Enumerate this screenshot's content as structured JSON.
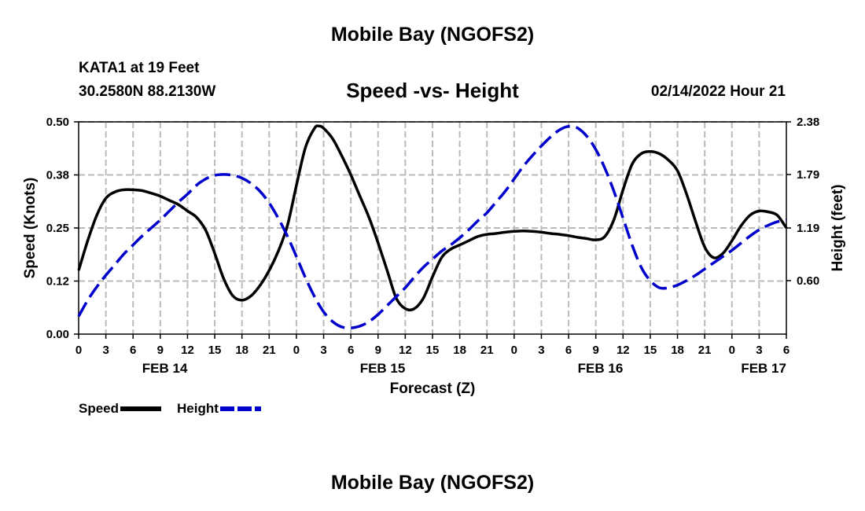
{
  "header": {
    "title": "Mobile Bay (NGOFS2)",
    "station": "KATA1 at 19 Feet",
    "coordinates": "30.2580N  88.2130W",
    "subtitle": "Speed -vs- Height",
    "date": "02/14/2022 Hour 21"
  },
  "footer": {
    "title": "Mobile Bay (NGOFS2)"
  },
  "legend": {
    "speed": "Speed",
    "height": "Height"
  },
  "chart_data": {
    "type": "line",
    "title": "Speed -vs- Height",
    "xlabel": "Forecast (Z)",
    "ylabel_left": "Speed (Knots)",
    "ylabel_right": "Height (feet)",
    "x_unit": "hours from FEB 14 00Z",
    "x_range": [
      0,
      78
    ],
    "x_ticks": [
      0,
      3,
      6,
      9,
      12,
      15,
      18,
      21,
      24,
      27,
      30,
      33,
      36,
      39,
      42,
      45,
      48,
      51,
      54,
      57,
      60,
      63,
      66,
      69,
      72,
      75,
      78
    ],
    "x_tick_labels": [
      "0",
      "3",
      "6",
      "9",
      "12",
      "15",
      "18",
      "21",
      "0",
      "3",
      "6",
      "9",
      "12",
      "15",
      "18",
      "21",
      "0",
      "3",
      "6",
      "9",
      "12",
      "15",
      "18",
      "21",
      "0",
      "3",
      "6"
    ],
    "date_labels": [
      {
        "x": 9.5,
        "text": "FEB 14"
      },
      {
        "x": 33.5,
        "text": "FEB 15"
      },
      {
        "x": 57.5,
        "text": "FEB 16"
      },
      {
        "x": 75.5,
        "text": "FEB 17"
      }
    ],
    "y_left_range": [
      0,
      0.5
    ],
    "y_left_ticks": [
      0.0,
      0.125,
      0.25,
      0.375,
      0.5
    ],
    "y_left_tick_labels": [
      "0.00",
      "0.12",
      "0.25",
      "0.38",
      "0.50"
    ],
    "y_right_range": [
      0,
      2.38
    ],
    "y_right_ticks": [
      0.6,
      1.19,
      1.79,
      2.38
    ],
    "y_right_tick_labels": [
      "0.60",
      "1.19",
      "1.79",
      "2.38"
    ],
    "grid": true,
    "legend_position": "bottom-left",
    "series": [
      {
        "name": "Speed",
        "axis": "left",
        "color": "#000000",
        "style": "solid",
        "points": [
          [
            0,
            0.15
          ],
          [
            1,
            0.22
          ],
          [
            2,
            0.28
          ],
          [
            3,
            0.32
          ],
          [
            4,
            0.335
          ],
          [
            5,
            0.34
          ],
          [
            6,
            0.34
          ],
          [
            7,
            0.338
          ],
          [
            8,
            0.332
          ],
          [
            9,
            0.325
          ],
          [
            10,
            0.315
          ],
          [
            11,
            0.305
          ],
          [
            12,
            0.29
          ],
          [
            13,
            0.275
          ],
          [
            14,
            0.245
          ],
          [
            15,
            0.19
          ],
          [
            16,
            0.13
          ],
          [
            17,
            0.09
          ],
          [
            18,
            0.08
          ],
          [
            19,
            0.09
          ],
          [
            20,
            0.115
          ],
          [
            21,
            0.15
          ],
          [
            22,
            0.195
          ],
          [
            23,
            0.255
          ],
          [
            24,
            0.35
          ],
          [
            25,
            0.44
          ],
          [
            26,
            0.485
          ],
          [
            26.5,
            0.49
          ],
          [
            27,
            0.485
          ],
          [
            28,
            0.46
          ],
          [
            29,
            0.42
          ],
          [
            30,
            0.375
          ],
          [
            31,
            0.325
          ],
          [
            32,
            0.275
          ],
          [
            33,
            0.215
          ],
          [
            34,
            0.15
          ],
          [
            35,
            0.085
          ],
          [
            36,
            0.06
          ],
          [
            37,
            0.06
          ],
          [
            38,
            0.085
          ],
          [
            39,
            0.135
          ],
          [
            40,
            0.18
          ],
          [
            41,
            0.2
          ],
          [
            42,
            0.21
          ],
          [
            43,
            0.22
          ],
          [
            44,
            0.23
          ],
          [
            45,
            0.235
          ],
          [
            46,
            0.237
          ],
          [
            47,
            0.24
          ],
          [
            48,
            0.242
          ],
          [
            49,
            0.243
          ],
          [
            50,
            0.242
          ],
          [
            51,
            0.24
          ],
          [
            52,
            0.237
          ],
          [
            53,
            0.235
          ],
          [
            54,
            0.232
          ],
          [
            55,
            0.228
          ],
          [
            56,
            0.225
          ],
          [
            57,
            0.222
          ],
          [
            58,
            0.23
          ],
          [
            59,
            0.27
          ],
          [
            60,
            0.34
          ],
          [
            61,
            0.4
          ],
          [
            62,
            0.425
          ],
          [
            63,
            0.43
          ],
          [
            64,
            0.425
          ],
          [
            65,
            0.41
          ],
          [
            66,
            0.385
          ],
          [
            67,
            0.33
          ],
          [
            68,
            0.265
          ],
          [
            69,
            0.205
          ],
          [
            70,
            0.18
          ],
          [
            71,
            0.19
          ],
          [
            72,
            0.22
          ],
          [
            73,
            0.255
          ],
          [
            74,
            0.28
          ],
          [
            75,
            0.29
          ],
          [
            76,
            0.288
          ],
          [
            77,
            0.28
          ],
          [
            78,
            0.25
          ]
        ]
      },
      {
        "name": "Height",
        "axis": "right",
        "color": "#0000cc",
        "style": "dashed",
        "points": [
          [
            0,
            0.2
          ],
          [
            1,
            0.38
          ],
          [
            2,
            0.53
          ],
          [
            3,
            0.66
          ],
          [
            4,
            0.78
          ],
          [
            5,
            0.9
          ],
          [
            6,
            1.0
          ],
          [
            7,
            1.1
          ],
          [
            8,
            1.19
          ],
          [
            9,
            1.28
          ],
          [
            10,
            1.38
          ],
          [
            11,
            1.48
          ],
          [
            12,
            1.57
          ],
          [
            13,
            1.67
          ],
          [
            14,
            1.74
          ],
          [
            15,
            1.78
          ],
          [
            16,
            1.79
          ],
          [
            17,
            1.78
          ],
          [
            18,
            1.75
          ],
          [
            19,
            1.69
          ],
          [
            20,
            1.6
          ],
          [
            21,
            1.47
          ],
          [
            22,
            1.3
          ],
          [
            23,
            1.1
          ],
          [
            24,
            0.87
          ],
          [
            25,
            0.63
          ],
          [
            26,
            0.42
          ],
          [
            27,
            0.25
          ],
          [
            28,
            0.14
          ],
          [
            29,
            0.08
          ],
          [
            30,
            0.07
          ],
          [
            31,
            0.09
          ],
          [
            32,
            0.14
          ],
          [
            33,
            0.22
          ],
          [
            34,
            0.32
          ],
          [
            35,
            0.42
          ],
          [
            36,
            0.52
          ],
          [
            37,
            0.64
          ],
          [
            38,
            0.75
          ],
          [
            39,
            0.84
          ],
          [
            40,
            0.93
          ],
          [
            41,
            1.0
          ],
          [
            42,
            1.08
          ],
          [
            43,
            1.17
          ],
          [
            44,
            1.27
          ],
          [
            45,
            1.36
          ],
          [
            46,
            1.48
          ],
          [
            47,
            1.6
          ],
          [
            48,
            1.74
          ],
          [
            49,
            1.88
          ],
          [
            50,
            2.0
          ],
          [
            51,
            2.11
          ],
          [
            52,
            2.21
          ],
          [
            53,
            2.29
          ],
          [
            54,
            2.33
          ],
          [
            55,
            2.31
          ],
          [
            56,
            2.22
          ],
          [
            57,
            2.07
          ],
          [
            58,
            1.86
          ],
          [
            59,
            1.6
          ],
          [
            60,
            1.3
          ],
          [
            61,
            1.0
          ],
          [
            62,
            0.75
          ],
          [
            63,
            0.6
          ],
          [
            64,
            0.52
          ],
          [
            65,
            0.52
          ],
          [
            66,
            0.55
          ],
          [
            67,
            0.6
          ],
          [
            68,
            0.66
          ],
          [
            69,
            0.73
          ],
          [
            70,
            0.8
          ],
          [
            71,
            0.87
          ],
          [
            72,
            0.94
          ],
          [
            73,
            1.02
          ],
          [
            74,
            1.1
          ],
          [
            75,
            1.17
          ],
          [
            76,
            1.22
          ],
          [
            77,
            1.26
          ],
          [
            78,
            1.28
          ]
        ]
      }
    ]
  }
}
